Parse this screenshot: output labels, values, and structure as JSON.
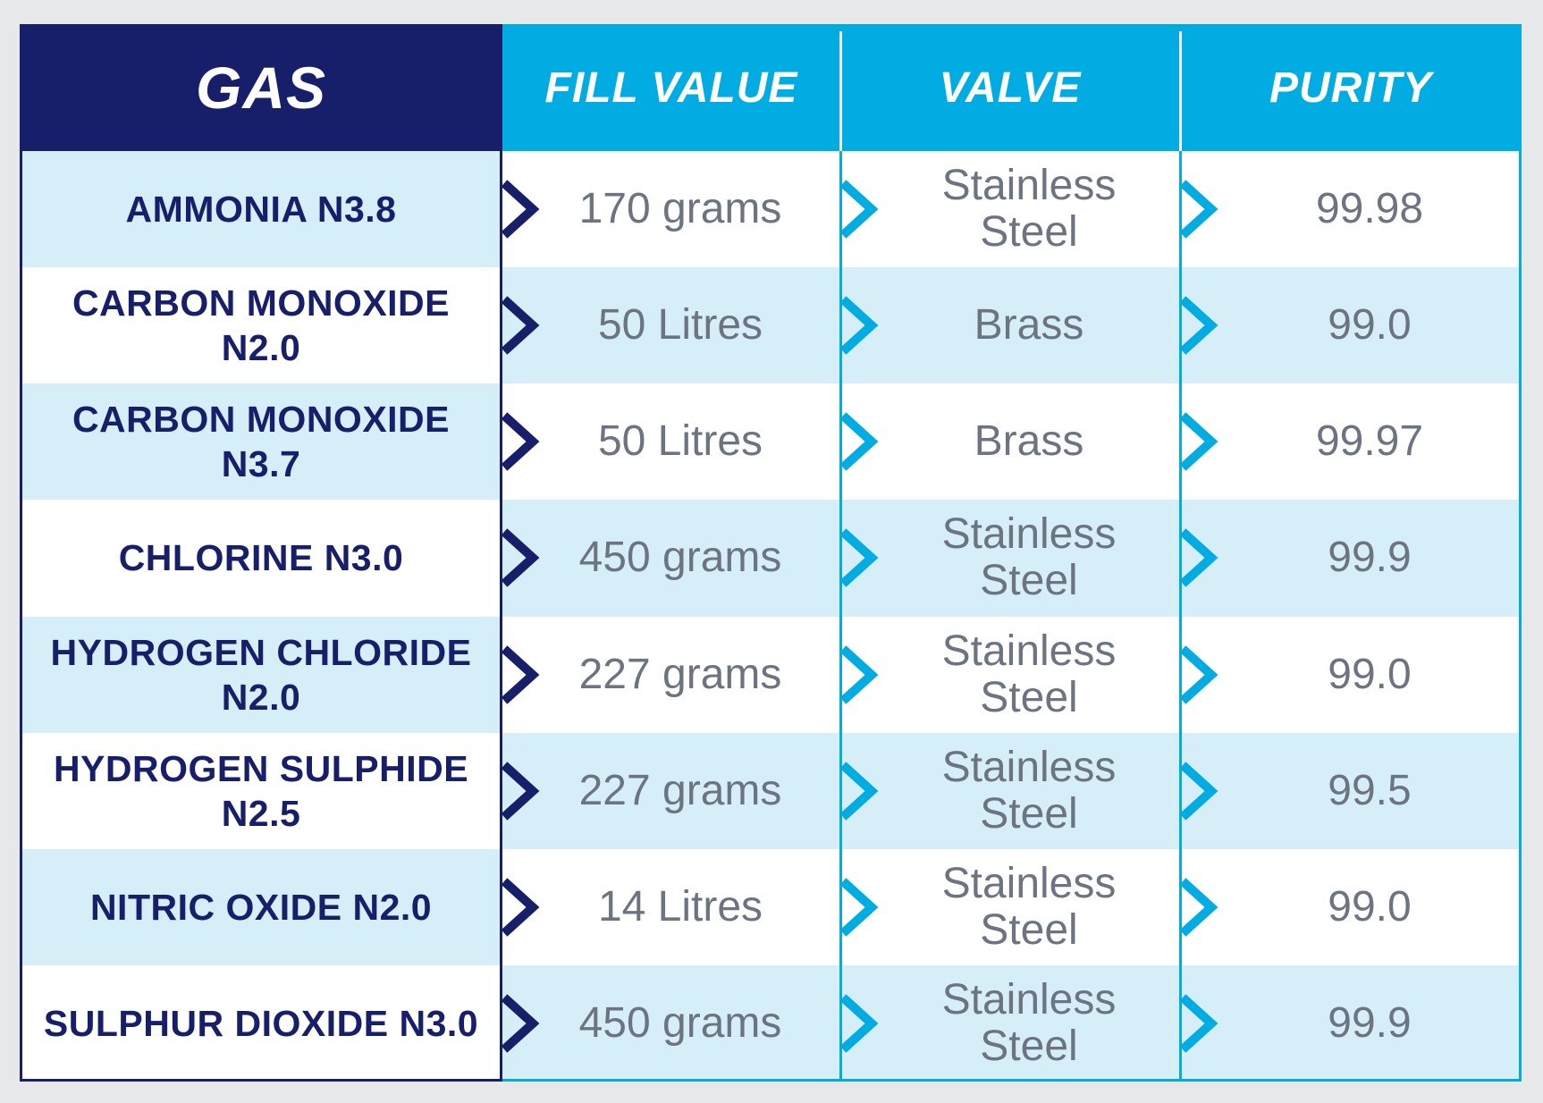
{
  "table": {
    "headers": {
      "gas": "GAS",
      "fill_value": "FILL VALUE",
      "valve": "VALVE",
      "purity": "PURITY"
    },
    "rows": [
      {
        "gas": "AMMONIA N3.8",
        "fill_value": "170 grams",
        "valve": "Stainless\nSteel",
        "purity": "99.98"
      },
      {
        "gas": "CARBON MONOXIDE\nN2.0",
        "fill_value": "50 Litres",
        "valve": "Brass",
        "purity": "99.0"
      },
      {
        "gas": "CARBON MONOXIDE\nN3.7",
        "fill_value": "50 Litres",
        "valve": "Brass",
        "purity": "99.97"
      },
      {
        "gas": "CHLORINE N3.0",
        "fill_value": "450 grams",
        "valve": "Stainless\nSteel",
        "purity": "99.9"
      },
      {
        "gas": "HYDROGEN CHLORIDE\nN2.0",
        "fill_value": "227 grams",
        "valve": "Stainless\nSteel",
        "purity": "99.0"
      },
      {
        "gas": "HYDROGEN SULPHIDE\nN2.5",
        "fill_value": "227 grams",
        "valve": "Stainless\nSteel",
        "purity": "99.5"
      },
      {
        "gas": "NITRIC OXIDE N2.0",
        "fill_value": "14 Litres",
        "valve": "Stainless\nSteel",
        "purity": "99.0"
      },
      {
        "gas": "SULPHUR DIOXIDE N3.0",
        "fill_value": "450 grams",
        "valve": "Stainless\nSteel",
        "purity": "99.9"
      }
    ]
  },
  "colors": {
    "navy": "#171f6b",
    "cyan": "#00ace1",
    "row_tint": "#d6eef8",
    "row_white": "#ffffff",
    "value_text": "#6b7480"
  },
  "icons": {
    "row_pointer": "chevron-right-icon"
  }
}
